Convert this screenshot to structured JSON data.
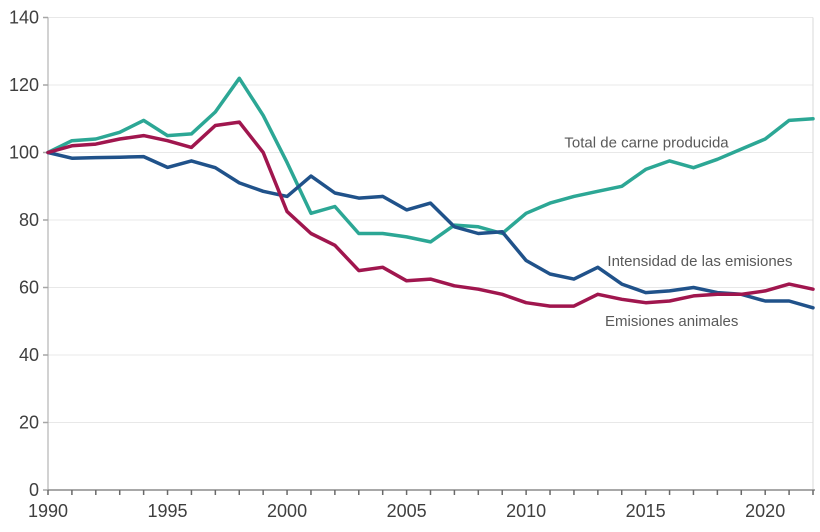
{
  "chart_data": {
    "type": "line",
    "title": "",
    "xlabel": "",
    "ylabel": "",
    "xlim": [
      1990,
      2022
    ],
    "ylim": [
      0,
      140
    ],
    "grid": "horizontal",
    "legend_position": "inline-annotations",
    "yticks": [
      0,
      20,
      40,
      60,
      80,
      100,
      120,
      140
    ],
    "xticks_labeled": [
      1990,
      1995,
      2000,
      2005,
      2010,
      2015,
      2020
    ],
    "x": [
      1990,
      1991,
      1992,
      1993,
      1994,
      1995,
      1996,
      1997,
      1998,
      1999,
      2000,
      2001,
      2002,
      2003,
      2004,
      2005,
      2006,
      2007,
      2008,
      2009,
      2010,
      2011,
      2012,
      2013,
      2014,
      2015,
      2016,
      2017,
      2018,
      2019,
      2020,
      2021,
      2022
    ],
    "series": [
      {
        "name": "Total de carne producida",
        "color": "#2CA795",
        "values": [
          100,
          103.5,
          104,
          106,
          109.5,
          105,
          105.5,
          112,
          122,
          111,
          97,
          82,
          84,
          76,
          76,
          75,
          73.5,
          78.5,
          78,
          76,
          82,
          85,
          87,
          88.5,
          90,
          95,
          97.5,
          95.5,
          98,
          101,
          104,
          109.5,
          110
        ]
      },
      {
        "name": "Intensidad de las emisiones",
        "color": "#20528A",
        "values": [
          100,
          98.3,
          98.5,
          98.6,
          98.8,
          95.6,
          97.5,
          95.5,
          91,
          88.5,
          87,
          93,
          88,
          86.5,
          87,
          83,
          85,
          78,
          76,
          76.5,
          68,
          64,
          62.5,
          66,
          61,
          58.5,
          59,
          60,
          58.5,
          58,
          56,
          56,
          54
        ]
      },
      {
        "name": "Emisiones animales",
        "color": "#A0164E",
        "values": [
          100,
          102,
          102.5,
          104,
          105,
          103.5,
          101.5,
          108,
          109,
          100,
          82.5,
          76,
          72.5,
          65,
          66,
          62,
          62.5,
          60.5,
          59.5,
          58,
          55.5,
          54.5,
          54.5,
          58,
          56.5,
          55.5,
          56,
          57.5,
          58,
          58,
          59,
          61,
          59.5
        ]
      }
    ],
    "annotations": [
      {
        "text": "Total de carne producida",
        "x": 2011.6,
        "y": 101.5
      },
      {
        "text": "Intensidad de las emisiones",
        "x": 2013.4,
        "y": 66.3
      },
      {
        "text": "Emisiones animales",
        "x": 2013.3,
        "y": 48.6
      }
    ],
    "colors": {
      "gridline": "#e8e8e8",
      "right_border": "#d9d9d9",
      "y_axis": "#a6a6a6",
      "x_axis": "#8c8c8c",
      "x_tick": "#696969",
      "y_tick": "#a6a6a6",
      "tick_label": "#3f3f3f",
      "annotation_text": "#595959",
      "background": "#ffffff"
    }
  }
}
